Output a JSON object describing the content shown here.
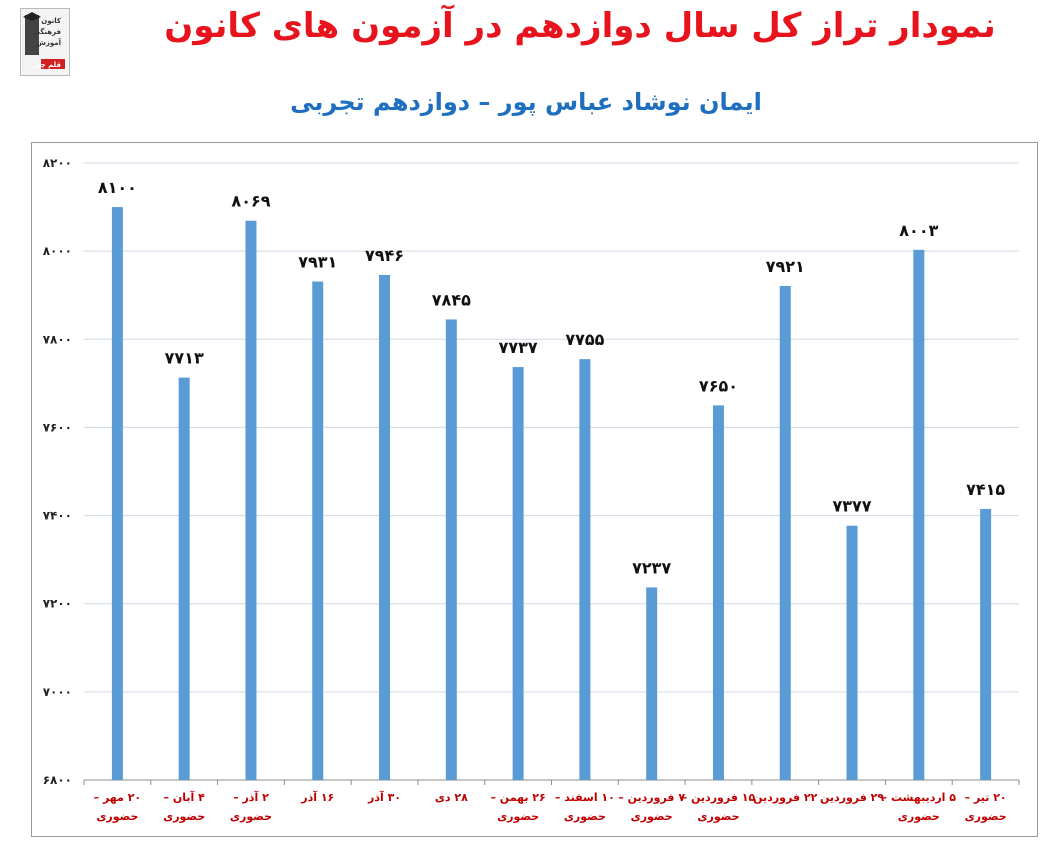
{
  "title": "نمودار تراز کل سال دوازدهم در آزمون های کانون",
  "subtitle": "ایمان نوشاد عباس پور – دوازدهم تجربی",
  "logo": {
    "lines": [
      "کانون",
      "فرهنگی",
      "آموزش",
      "قلم چی"
    ]
  },
  "colors": {
    "bar": "#5b9bd5",
    "title": "#e8141d",
    "subtitle": "#1f6fc1",
    "category_label": "#c00000",
    "grid": "#d0d9e6"
  },
  "chart_data": {
    "type": "bar",
    "title": "نمودار تراز کل سال دوازدهم در آزمون های کانون",
    "subtitle": "ایمان نوشاد عباس پور – دوازدهم تجربی",
    "categories": [
      [
        "۲۰ مهر –",
        "حضوری"
      ],
      [
        "۴ آبان –",
        "حضوری"
      ],
      [
        "۲ آذر –",
        "حضوری"
      ],
      [
        "۱۶ آذر"
      ],
      [
        "۳۰ آذر"
      ],
      [
        "۲۸ دی"
      ],
      [
        "۲۶ بهمن –",
        "حضوری"
      ],
      [
        "۱۰ اسفند –",
        "حضوری"
      ],
      [
        "۷ فروردین –",
        "حضوری"
      ],
      [
        "۱۵ فروردین –",
        "حضوری"
      ],
      [
        "۲۲ فروردین"
      ],
      [
        "۲۹ فروردین"
      ],
      [
        "۵ اردیبهشت –",
        "حضوری"
      ],
      [
        "۲۰ تیر –",
        "حضوری"
      ]
    ],
    "values": [
      8100,
      7713,
      8069,
      7931,
      7946,
      7845,
      7737,
      7755,
      7237,
      7650,
      7921,
      7377,
      8003,
      7415
    ],
    "value_labels": [
      "۸۱۰۰",
      "۷۷۱۳",
      "۸۰۶۹",
      "۷۹۳۱",
      "۷۹۴۶",
      "۷۸۴۵",
      "۷۷۳۷",
      "۷۷۵۵",
      "۷۲۳۷",
      "۷۶۵۰",
      "۷۹۲۱",
      "۷۳۷۷",
      "۸۰۰۳",
      "۷۴۱۵"
    ],
    "ylim": [
      6800,
      8200
    ],
    "yticks": [
      6800,
      7000,
      7200,
      7400,
      7600,
      7800,
      8000,
      8200
    ],
    "ytick_labels": [
      "۶۸۰۰",
      "۷۰۰۰",
      "۷۲۰۰",
      "۷۴۰۰",
      "۷۶۰۰",
      "۷۸۰۰",
      "۸۰۰۰",
      "۸۲۰۰"
    ],
    "grid": true,
    "legend": "none"
  }
}
